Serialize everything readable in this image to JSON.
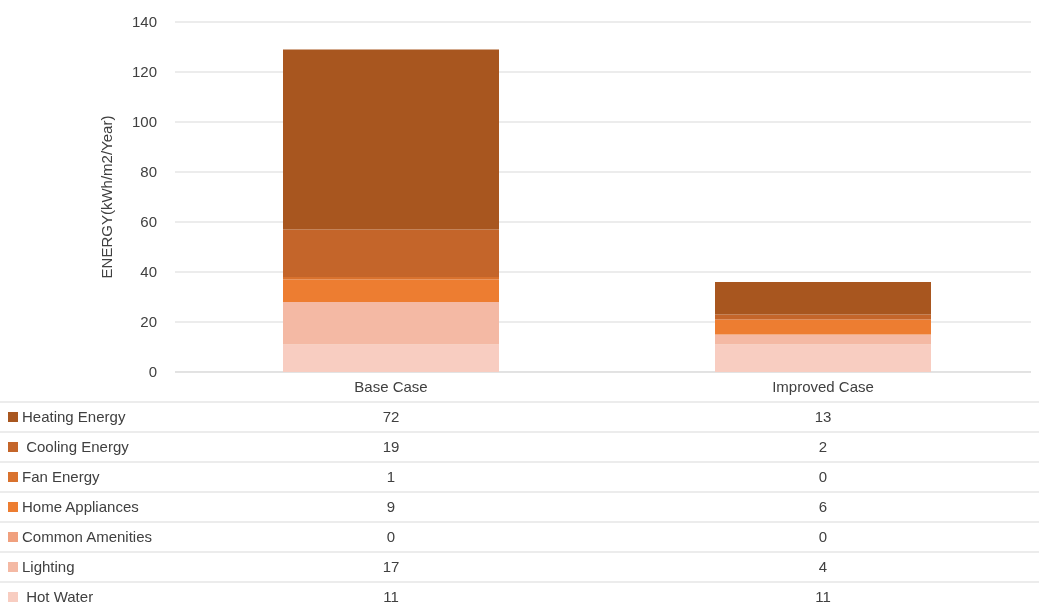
{
  "chart_data": {
    "type": "bar",
    "stacked": true,
    "ylabel": "ENERGY(kWh/m2/Year)",
    "categories": [
      "Base Case",
      "Improved Case"
    ],
    "series": [
      {
        "name": " Hot Water",
        "color": "#f8cdc1",
        "values": [
          11,
          11
        ]
      },
      {
        "name": "Lighting",
        "color": "#f4b9a4",
        "values": [
          17,
          4
        ]
      },
      {
        "name": "Common Amenities",
        "color": "#f0a07e",
        "values": [
          0,
          0
        ]
      },
      {
        "name": "Home Appliances",
        "color": "#ed7d31",
        "values": [
          9,
          6
        ]
      },
      {
        "name": "Fan Energy",
        "color": "#d9722e",
        "values": [
          1,
          0
        ]
      },
      {
        "name": " Cooling Energy",
        "color": "#c4652a",
        "values": [
          19,
          2
        ]
      },
      {
        "name": "Heating Energy",
        "color": "#a8561f",
        "values": [
          72,
          13
        ]
      }
    ],
    "ylim": [
      0,
      140
    ],
    "yticks": [
      0,
      20,
      40,
      60,
      80,
      100,
      120,
      140
    ],
    "grid": "y",
    "legend": "bottom",
    "data_labels": true
  }
}
